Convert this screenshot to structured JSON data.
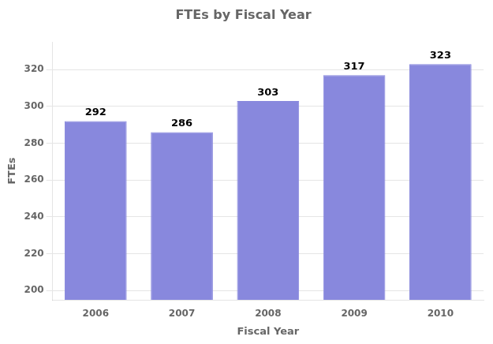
{
  "chart_data": {
    "type": "bar",
    "title": "FTEs by Fiscal Year",
    "xlabel": "Fiscal Year",
    "ylabel": "FTEs",
    "categories": [
      "2006",
      "2007",
      "2008",
      "2009",
      "2010"
    ],
    "values": [
      292,
      286,
      303,
      317,
      323
    ],
    "color": "#8888DD",
    "ylim": [
      195,
      335
    ],
    "yticks": [
      200,
      220,
      240,
      260,
      280,
      300,
      320
    ],
    "grid": true,
    "data_labels": true
  }
}
